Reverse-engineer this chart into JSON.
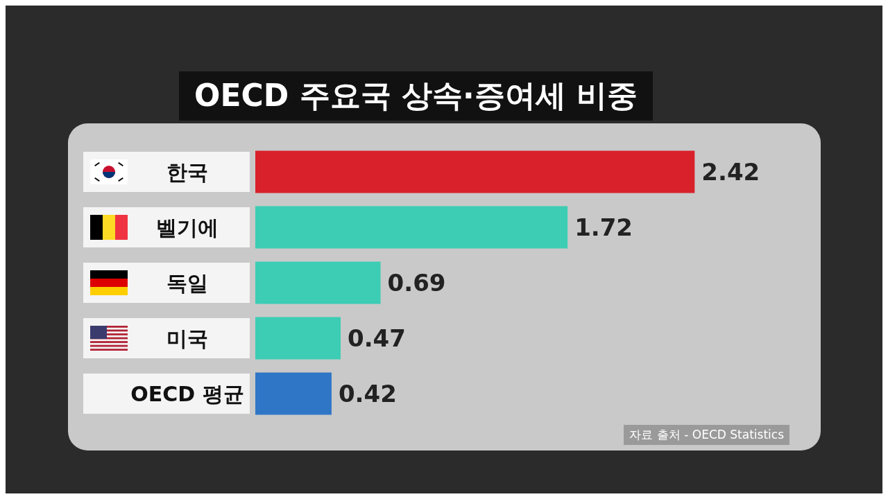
{
  "chart_data": {
    "type": "bar",
    "orientation": "horizontal",
    "title": "OECD 주요국 상속·증여세 비중",
    "categories": [
      "한국",
      "벨기에",
      "독일",
      "미국",
      "OECD 평균"
    ],
    "values": [
      2.42,
      1.72,
      0.69,
      0.47,
      0.42
    ],
    "colors": [
      "#d8212b",
      "#3ccdb4",
      "#3ccdb4",
      "#3ccdb4",
      "#2f76c6"
    ],
    "data_labels": true,
    "annotations": [
      "자료 출처 - OECD Statistics"
    ]
  }
}
